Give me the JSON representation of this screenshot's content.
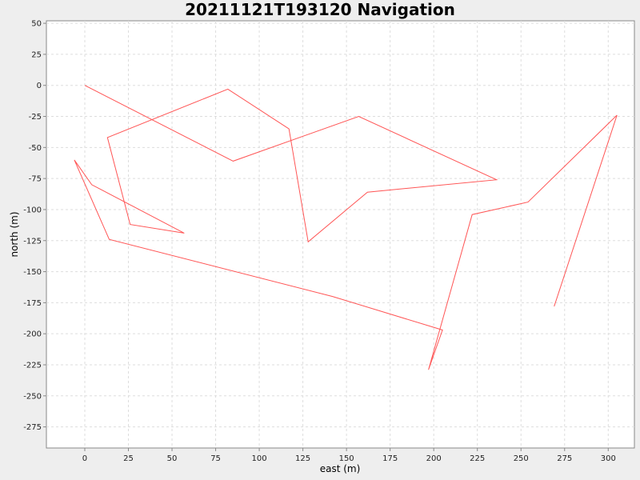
{
  "chart_data": {
    "type": "line",
    "title": "20211121T193120 Navigation",
    "xlabel": "east (m)",
    "ylabel": "north (m)",
    "xlim": [
      -22,
      315
    ],
    "ylim": [
      -292,
      52
    ],
    "xticks": [
      0,
      25,
      50,
      75,
      100,
      125,
      150,
      175,
      200,
      225,
      250,
      275,
      300
    ],
    "yticks": [
      50,
      25,
      0,
      -25,
      -50,
      -75,
      -100,
      -125,
      -150,
      -175,
      -200,
      -225,
      -250,
      -275
    ],
    "grid": true,
    "series": [
      {
        "color": "#ff5555",
        "points": [
          [
            0,
            0
          ],
          [
            85,
            -61
          ],
          [
            157,
            -25
          ],
          [
            236,
            -76
          ],
          [
            162,
            -86
          ],
          [
            128,
            -126
          ],
          [
            117,
            -35
          ],
          [
            82,
            -3
          ],
          [
            13,
            -42
          ],
          [
            26,
            -112
          ],
          [
            57,
            -119
          ],
          [
            4,
            -80
          ],
          [
            -6,
            -60
          ],
          [
            14,
            -124
          ],
          [
            142,
            -170
          ],
          [
            205,
            -197
          ],
          [
            197,
            -229
          ],
          [
            222,
            -104
          ],
          [
            254,
            -94
          ],
          [
            305,
            -24
          ],
          [
            269,
            -178
          ]
        ]
      }
    ]
  }
}
